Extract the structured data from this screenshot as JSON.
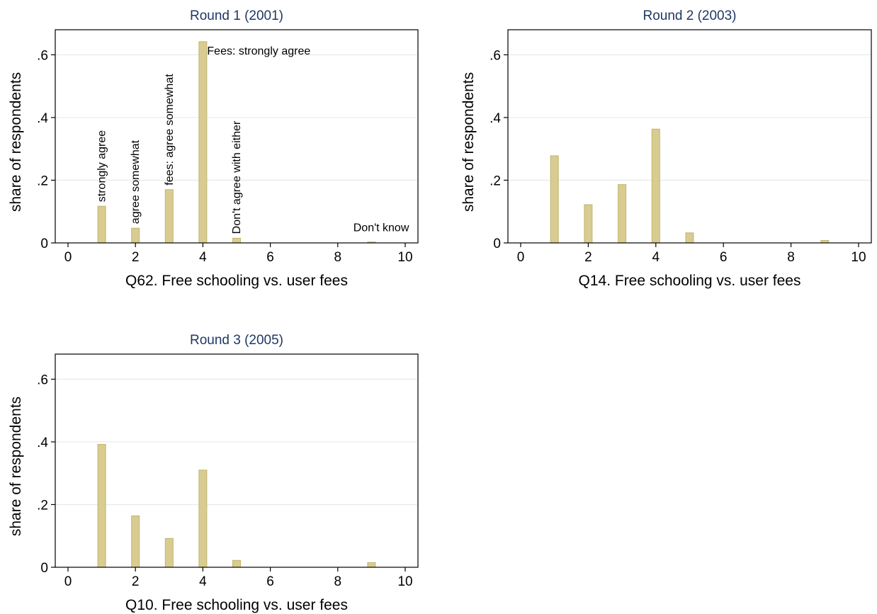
{
  "chart_data": [
    {
      "type": "bar",
      "title": "Round 1 (2001)",
      "xlabel": "Q62. Free schooling vs. user fees",
      "ylabel": "share of respondents",
      "xlim": [
        0,
        10
      ],
      "ylim": [
        0,
        0.68
      ],
      "xticks": [
        "0",
        "2",
        "4",
        "6",
        "8",
        "10"
      ],
      "yticks": [
        "0",
        ".2",
        ".4",
        ".6"
      ],
      "grid": true,
      "x": [
        1,
        2,
        3,
        4,
        5,
        9
      ],
      "values": [
        0.117,
        0.047,
        0.17,
        0.642,
        0.015,
        0.003
      ],
      "bar_labels": [
        "strongly agree",
        "agree somewhat",
        "fees: agree somewhat",
        "Fees: strongly agree",
        "Don't agree with either",
        "Don't know"
      ]
    },
    {
      "type": "bar",
      "title": "Round 2 (2003)",
      "xlabel": "Q14. Free schooling vs. user fees",
      "ylabel": "share of respondents",
      "xlim": [
        0,
        10
      ],
      "ylim": [
        0,
        0.68
      ],
      "xticks": [
        "0",
        "2",
        "4",
        "6",
        "8",
        "10"
      ],
      "yticks": [
        "0",
        ".2",
        ".4",
        ".6"
      ],
      "grid": true,
      "x": [
        1,
        2,
        3,
        4,
        5,
        9
      ],
      "values": [
        0.278,
        0.122,
        0.186,
        0.363,
        0.032,
        0.008
      ]
    },
    {
      "type": "bar",
      "title": "Round 3 (2005)",
      "xlabel": "Q10. Free schooling vs. user fees",
      "ylabel": "share of respondents",
      "xlim": [
        0,
        10
      ],
      "ylim": [
        0,
        0.68
      ],
      "xticks": [
        "0",
        "2",
        "4",
        "6",
        "8",
        "10"
      ],
      "yticks": [
        "0",
        ".2",
        ".4",
        ".6"
      ],
      "grid": true,
      "x": [
        1,
        2,
        3,
        4,
        5,
        9
      ],
      "values": [
        0.392,
        0.164,
        0.092,
        0.31,
        0.022,
        0.015
      ]
    }
  ]
}
